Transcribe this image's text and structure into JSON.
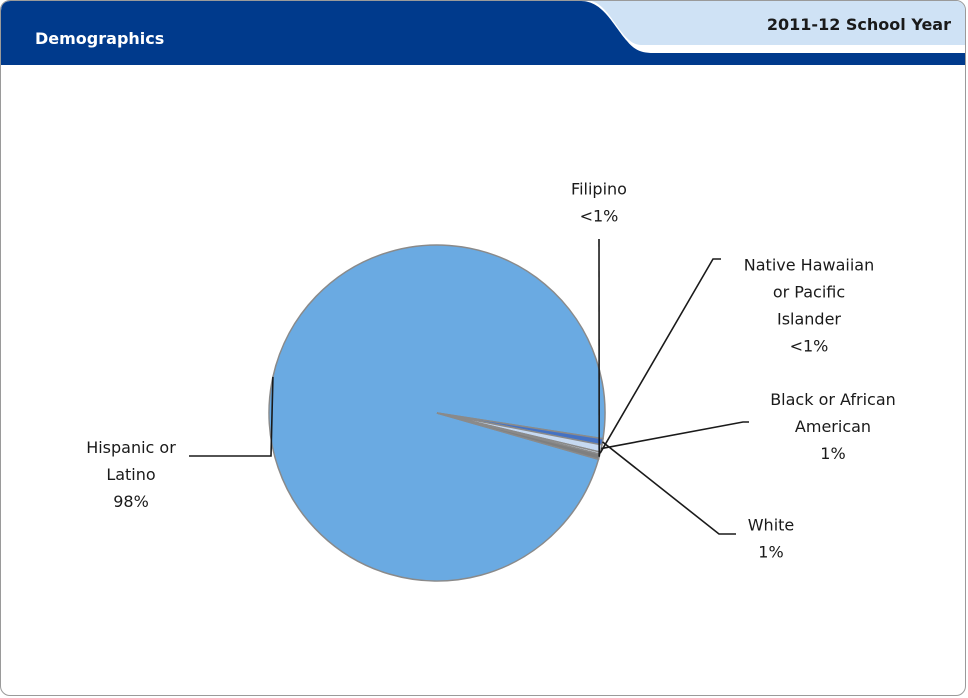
{
  "header": {
    "title": "Demographics",
    "year": "2011-12 School Year",
    "title_bar_color": "#003a8c",
    "year_tab_color": "#cfe2f5"
  },
  "chart_data": {
    "type": "pie",
    "title": "",
    "slices": [
      {
        "name": "Hispanic or Latino",
        "value": 98,
        "label_lines": [
          "Hispanic or",
          "Latino"
        ],
        "percent_label": "98%",
        "color": "#6aaae2"
      },
      {
        "name": "White",
        "value": 0.6,
        "label_lines": [
          "White"
        ],
        "percent_label": "1%",
        "color": "#4472c4"
      },
      {
        "name": "Black or African American",
        "value": 0.7,
        "label_lines": [
          "Black or African",
          "American"
        ],
        "percent_label": "1%",
        "color": "#c6d9f1"
      },
      {
        "name": "Native Hawaiian or Pacific Islander",
        "value": 0.2,
        "label_lines": [
          "Native Hawaiian",
          "or Pacific",
          "Islander"
        ],
        "percent_label": "<1%",
        "color": "#dbe8f6"
      },
      {
        "name": "Filipino",
        "value": 0.5,
        "label_lines": [
          "Filipino"
        ],
        "percent_label": "<1%",
        "color": "#7f7f7f"
      }
    ],
    "legend": "none"
  }
}
